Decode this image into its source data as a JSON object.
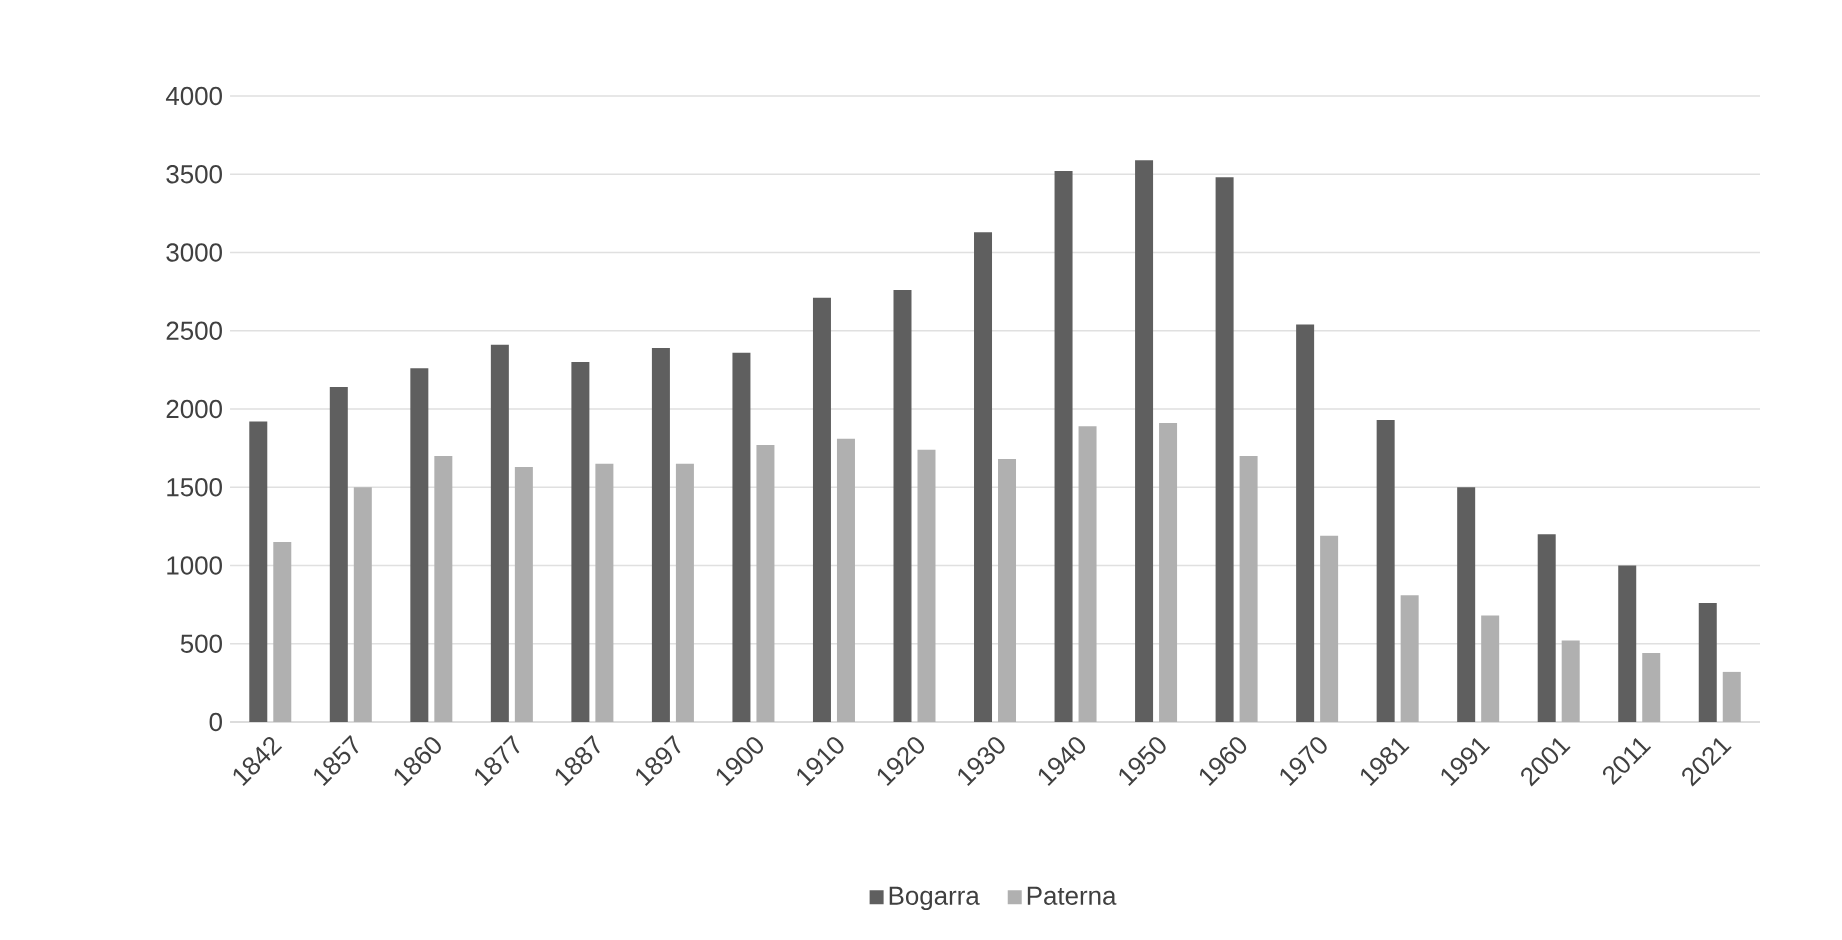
{
  "chart_data": {
    "type": "bar",
    "categories": [
      "1842",
      "1857",
      "1860",
      "1877",
      "1887",
      "1897",
      "1900",
      "1910",
      "1920",
      "1930",
      "1940",
      "1950",
      "1960",
      "1970",
      "1981",
      "1991",
      "2001",
      "2011",
      "2021"
    ],
    "series": [
      {
        "name": "Bogarra",
        "color": "#5f5f5f",
        "values": [
          1920,
          2140,
          2260,
          2410,
          2300,
          2390,
          2360,
          2710,
          2760,
          3130,
          3520,
          3590,
          3480,
          2540,
          1930,
          1500,
          1200,
          1000,
          760
        ]
      },
      {
        "name": "Paterna",
        "color": "#b0b0b0",
        "values": [
          1150,
          1500,
          1700,
          1630,
          1650,
          1650,
          1770,
          1810,
          1740,
          1680,
          1890,
          1910,
          1700,
          1190,
          810,
          680,
          520,
          440,
          320
        ]
      }
    ],
    "ylim": [
      0,
      4000
    ],
    "yticks": [
      0,
      500,
      1000,
      1500,
      2000,
      2500,
      3000,
      3500,
      4000
    ],
    "grid": "y",
    "legend": "bottom"
  }
}
